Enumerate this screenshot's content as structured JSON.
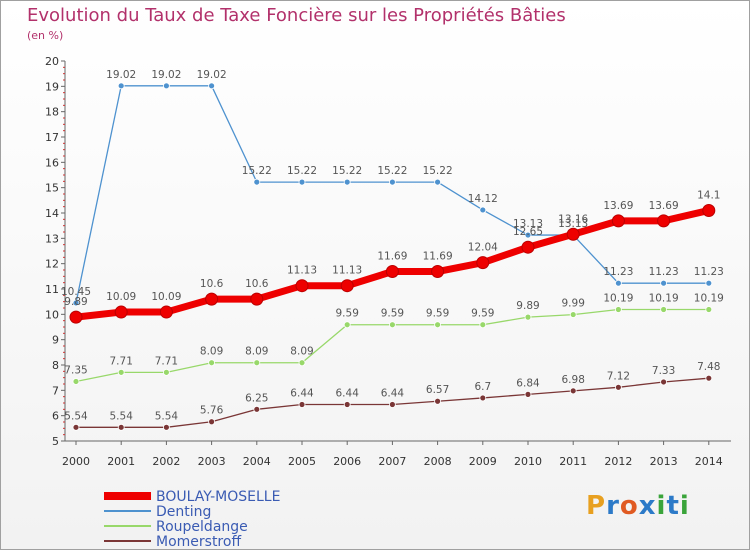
{
  "chart_data": {
    "type": "line",
    "title": "Evolution du Taux de Taxe Foncière sur les Propriétés Bâties",
    "subtitle": "(en %)",
    "x": [
      "2000",
      "2001",
      "2002",
      "2003",
      "2004",
      "2005",
      "2006",
      "2007",
      "2008",
      "2009",
      "2010",
      "2011",
      "2012",
      "2013",
      "2014"
    ],
    "ylim": [
      5,
      20
    ],
    "yticks": [
      "5",
      "6",
      "7",
      "8",
      "9",
      "10",
      "11",
      "12",
      "13",
      "14",
      "15",
      "16",
      "17",
      "18",
      "19",
      "20"
    ],
    "grid": false,
    "legend_position": "bottom-left",
    "series": [
      {
        "name": "BOULAY-MOSELLE",
        "color": "#ee0000",
        "values": [
          9.89,
          10.09,
          10.09,
          10.6,
          10.6,
          11.13,
          11.13,
          11.69,
          11.69,
          12.04,
          12.65,
          13.16,
          13.69,
          13.69,
          14.1
        ],
        "labels": [
          "9.89",
          "10.09",
          "10.09",
          "10.6",
          "10.6",
          "11.13",
          "11.13",
          "11.69",
          "11.69",
          "12.04",
          "12.65",
          "13.16",
          "13.69",
          "13.69",
          "14.1"
        ]
      },
      {
        "name": "Denting",
        "color": "#4e92cf",
        "values": [
          10.45,
          19.02,
          19.02,
          19.02,
          15.22,
          15.22,
          15.22,
          15.22,
          15.22,
          14.12,
          13.13,
          13.13,
          11.23,
          11.23,
          11.23
        ],
        "labels": [
          "10.45",
          "19.02",
          "19.02",
          "19.02",
          "15.22",
          "15.22",
          "15.22",
          "15.22",
          "15.22",
          "14.12",
          "13.13",
          "13.13",
          "11.23",
          "11.23",
          "11.23"
        ]
      },
      {
        "name": "Roupeldange",
        "color": "#98d86a",
        "values": [
          7.35,
          7.71,
          7.71,
          8.09,
          8.09,
          8.09,
          9.59,
          9.59,
          9.59,
          9.59,
          9.89,
          9.99,
          10.19,
          10.19,
          10.19
        ],
        "labels": [
          "7.35",
          "7.71",
          "7.71",
          "8.09",
          "8.09",
          "8.09",
          "9.59",
          "9.59",
          "9.59",
          "9.59",
          "9.89",
          "9.99",
          "10.19",
          "10.19",
          "10.19"
        ]
      },
      {
        "name": "Momerstroff",
        "color": "#7a3636",
        "values": [
          5.54,
          5.54,
          5.54,
          5.76,
          6.25,
          6.44,
          6.44,
          6.44,
          6.57,
          6.7,
          6.84,
          6.98,
          7.12,
          7.33,
          7.48
        ],
        "labels": [
          "5.54",
          "5.54",
          "5.54",
          "5.76",
          "6.25",
          "6.44",
          "6.44",
          "6.44",
          "6.57",
          "6.7",
          "6.84",
          "6.98",
          "7.12",
          "7.33",
          "7.48"
        ]
      }
    ]
  },
  "logo": {
    "letters": [
      "P",
      "r",
      "o",
      "x",
      "i",
      "t",
      "i"
    ],
    "colors": [
      "#e8a020",
      "#2c7ac8",
      "#e05a22",
      "#2c7ac8",
      "#3aa43a",
      "#2c7ac8",
      "#3aa43a"
    ]
  }
}
